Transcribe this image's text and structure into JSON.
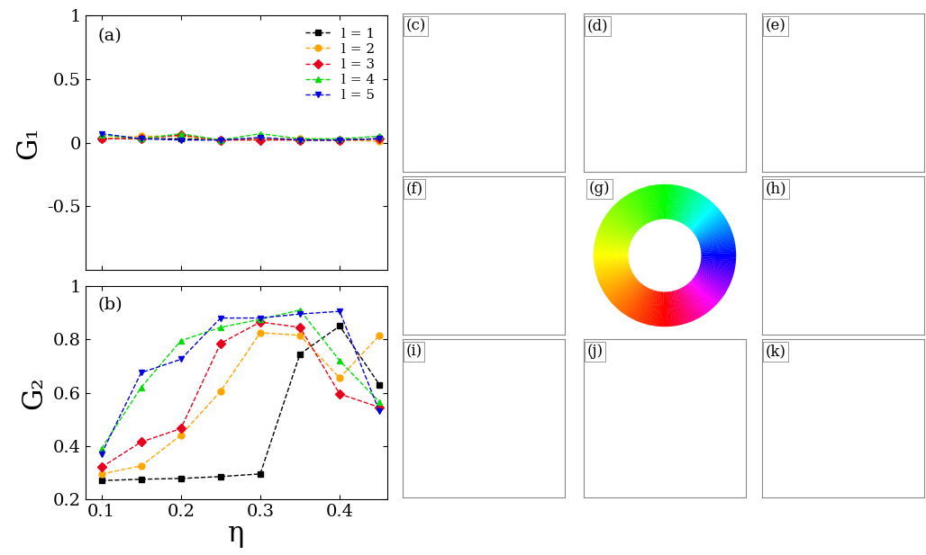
{
  "chart_data": [
    {
      "type": "line",
      "title": "(a)",
      "y_label": "G₁",
      "tick_labels": "y",
      "legend": "upper right",
      "x": [
        0.1,
        0.15,
        0.2,
        0.25,
        0.3,
        0.35,
        0.4,
        0.45
      ],
      "xlim": [
        0.08,
        0.46
      ],
      "xticks": [
        0.1,
        0.2,
        0.3,
        0.4
      ],
      "ylim": [
        -1,
        1
      ],
      "yticks": [
        -0.5,
        0,
        0.5,
        1
      ],
      "series": [
        {
          "name": "l = 1",
          "color": "#000000",
          "marker": "s",
          "line_style": "dashed",
          "values": [
            0.03,
            0.03,
            0.03,
            0.02,
            0.03,
            0.02,
            0.02,
            0.03
          ]
        },
        {
          "name": "l = 2",
          "color": "#ffa500",
          "marker": "o",
          "line_style": "dashed",
          "values": [
            0.03,
            0.05,
            0.05,
            0.02,
            0.03,
            0.03,
            0.02,
            0.01
          ]
        },
        {
          "name": "l = 3",
          "color": "#e8001c",
          "marker": "D",
          "line_style": "dashed",
          "values": [
            0.03,
            0.03,
            0.06,
            0.02,
            0.02,
            0.02,
            0.02,
            0.03
          ]
        },
        {
          "name": "l = 4",
          "color": "#00dd00",
          "marker": "^",
          "line_style": "dashed",
          "values": [
            0.06,
            0.03,
            0.07,
            0.02,
            0.07,
            0.03,
            0.03,
            0.05
          ]
        },
        {
          "name": "l = 5",
          "color": "#0000e0",
          "marker": "v",
          "line_style": "dashed",
          "values": [
            0.07,
            0.03,
            0.02,
            0.02,
            0.04,
            0.02,
            0.02,
            0.03
          ]
        }
      ]
    },
    {
      "type": "line",
      "title": "(b)",
      "x_label": "η",
      "y_label": "G₂",
      "x": [
        0.1,
        0.15,
        0.2,
        0.25,
        0.3,
        0.35,
        0.4,
        0.45
      ],
      "xlim": [
        0.08,
        0.46
      ],
      "xticks": [
        0.1,
        0.2,
        0.3,
        0.4
      ],
      "ylim": [
        0.2,
        1
      ],
      "yticks": [
        0.2,
        0.4,
        0.6,
        0.8,
        1
      ],
      "series": [
        {
          "name": "l = 1",
          "color": "#000000",
          "marker": "s",
          "line_style": "dashed",
          "values": [
            0.27,
            0.275,
            0.278,
            0.285,
            0.295,
            0.745,
            0.85,
            0.63
          ]
        },
        {
          "name": "l = 2",
          "color": "#ffa500",
          "marker": "o",
          "line_style": "dashed",
          "values": [
            0.295,
            0.325,
            0.44,
            0.605,
            0.825,
            0.815,
            0.655,
            0.815
          ]
        },
        {
          "name": "l = 3",
          "color": "#e8001c",
          "marker": "D",
          "line_style": "dashed",
          "values": [
            0.32,
            0.415,
            0.465,
            0.785,
            0.865,
            0.845,
            0.595,
            0.545
          ]
        },
        {
          "name": "l = 4",
          "color": "#00dd00",
          "marker": "^",
          "line_style": "dashed",
          "values": [
            0.39,
            0.62,
            0.795,
            0.845,
            0.875,
            0.91,
            0.72,
            0.565
          ]
        },
        {
          "name": "l = 5",
          "color": "#0000e0",
          "marker": "v",
          "line_style": "dashed",
          "values": [
            0.37,
            0.675,
            0.725,
            0.88,
            0.88,
            0.895,
            0.905,
            0.53
          ]
        }
      ]
    }
  ],
  "snapshots": {
    "labels": [
      "(c)",
      "(d)",
      "(e)",
      "(f)",
      "(g)",
      "(h)",
      "(i)",
      "(j)",
      "(k)"
    ]
  }
}
